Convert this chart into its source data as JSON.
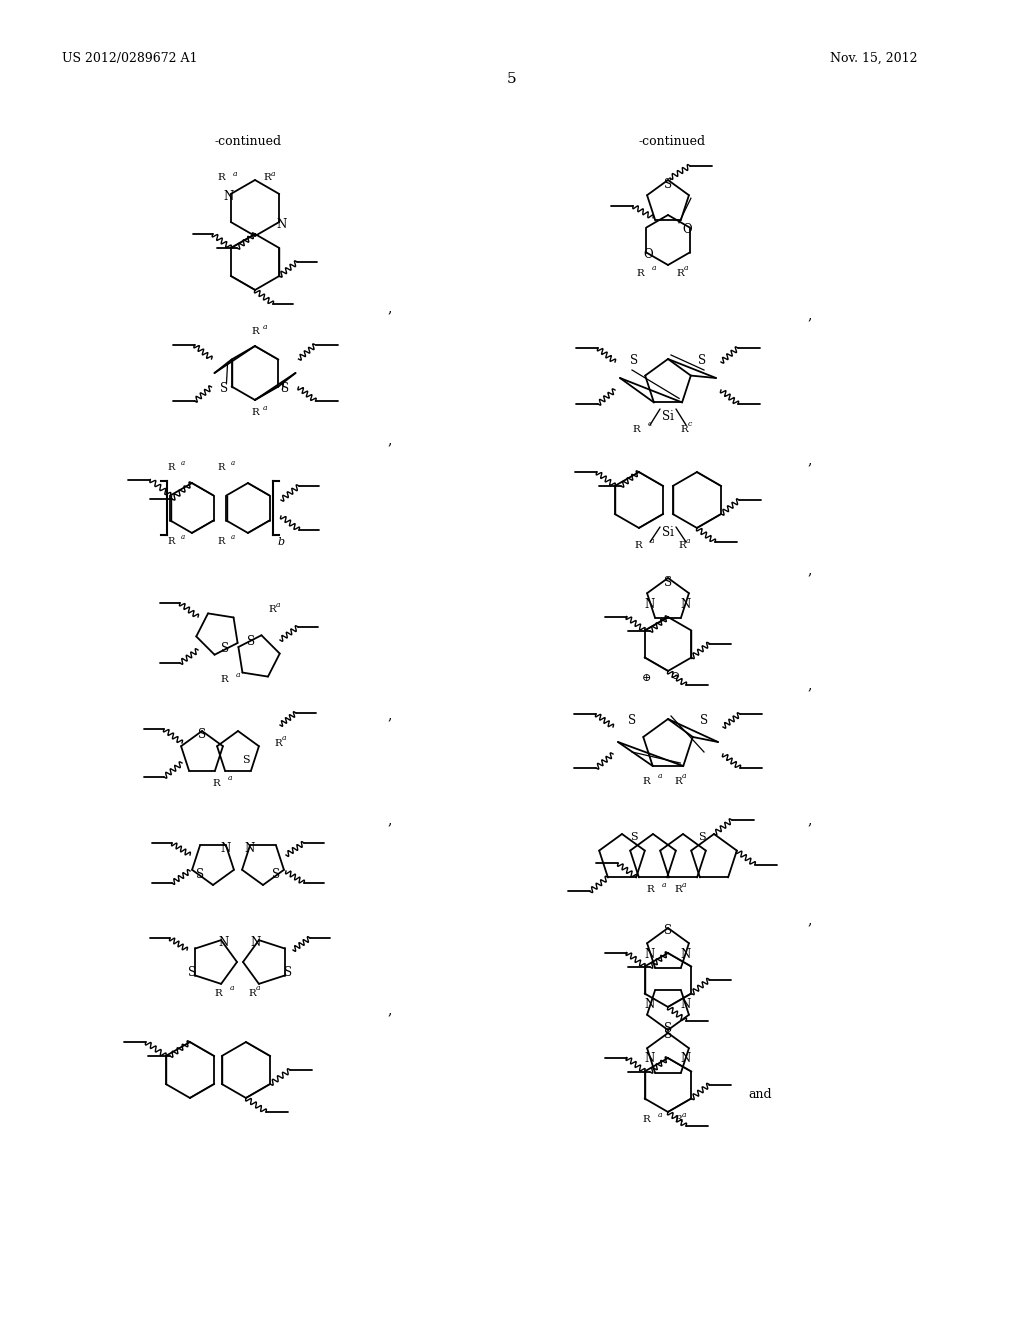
{
  "header_left": "US 2012/0289672 A1",
  "header_right": "Nov. 15, 2012",
  "page_number": "5",
  "continued_left": "-continued",
  "continued_right": "-continued",
  "and_text": "and",
  "bg_color": "#ffffff"
}
